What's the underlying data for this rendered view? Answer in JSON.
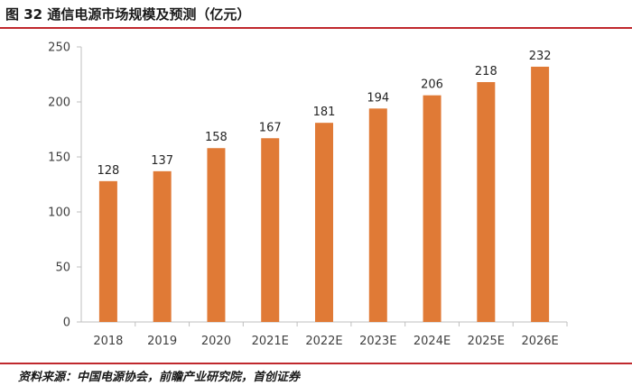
{
  "header": {
    "title": "图 32 通信电源市场规模及预测（亿元）"
  },
  "footer": {
    "source": "资料来源：中国电源协会，前瞻产业研究院，首创证券"
  },
  "chart_data": {
    "type": "bar",
    "title": "图 32 通信电源市场规模及预测（亿元）",
    "categories": [
      "2018",
      "2019",
      "2020",
      "2021E",
      "2022E",
      "2023E",
      "2024E",
      "2025E",
      "2026E"
    ],
    "values": [
      128,
      137,
      158,
      167,
      181,
      194,
      206,
      218,
      232
    ],
    "xlabel": "",
    "ylabel": "",
    "ylim": [
      0,
      250
    ],
    "yticks": [
      0,
      50,
      100,
      150,
      200,
      250
    ],
    "grid": false,
    "legend": "none",
    "bar_color": "#e07a36",
    "data_labels": true
  },
  "colors": {
    "accent_rule": "#c0282d",
    "bar": "#e07a36"
  }
}
